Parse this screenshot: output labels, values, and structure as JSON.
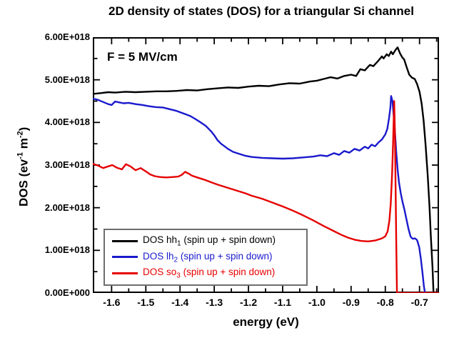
{
  "title": "2D density of states (DOS) for a triangular Si channel",
  "annotation": "F = 5 MV/cm",
  "axes": {
    "x_label": "energy (eV)",
    "y_label_prefix": "DOS (ev",
    "y_sup1": "-1",
    "y_label_mid": " m",
    "y_sup2": "-2",
    "y_label_suffix": ")"
  },
  "legend": {
    "entries": [
      {
        "prefix": "DOS hh",
        "sub": "1",
        "suffix": " (spin up + spin down)",
        "color": "#000000"
      },
      {
        "prefix": "DOS lh",
        "sub": "2",
        "suffix": "  (spin up + spin down)",
        "color": "#1a1acd"
      },
      {
        "prefix": "DOS so",
        "sub": "3",
        "suffix": " (spin up + spin down)",
        "color": "#e60000"
      }
    ]
  },
  "chart_data": {
    "type": "line",
    "title": "2D density of states (DOS) for a triangular Si channel",
    "xlabel": "energy (eV)",
    "ylabel": "DOS (ev-1 m-2)",
    "annotation": "F = 5 MV/cm",
    "y_unit_scale": "values are in units of 1e18 ev-1 m-2",
    "xlim": [
      -1.655,
      -0.643
    ],
    "ylim": [
      0,
      6
    ],
    "grid": false,
    "legend_position": "inside lower-left",
    "x_major_ticks": [
      -1.6,
      -1.5,
      -1.4,
      -1.3,
      -1.2,
      -1.1,
      -1.0,
      -0.9,
      -0.8,
      -0.7
    ],
    "x_minor_ticks": [
      -1.65,
      -1.55,
      -1.45,
      -1.35,
      -1.25,
      -1.15,
      -1.05,
      -0.95,
      -0.85,
      -0.75,
      -0.65
    ],
    "y_major_ticks": [
      0,
      1,
      2,
      3,
      4,
      5,
      6
    ],
    "y_minor_ticks": [
      0.5,
      1.5,
      2.5,
      3.5,
      4.5,
      5.5
    ],
    "x_tick_labels": [
      {
        "v": -1.6,
        "label": "-1.6"
      },
      {
        "v": -1.5,
        "label": "-1.5"
      },
      {
        "v": -1.4,
        "label": "-1.4"
      },
      {
        "v": -1.3,
        "label": "-1.3"
      },
      {
        "v": -1.2,
        "label": "-1.2"
      },
      {
        "v": -1.1,
        "label": "-1.1"
      },
      {
        "v": -1.0,
        "label": "-1.0"
      },
      {
        "v": -0.9,
        "label": "-0.9"
      },
      {
        "v": -0.8,
        "label": "-0.8"
      },
      {
        "v": -0.7,
        "label": "-0.7"
      }
    ],
    "y_tick_labels": [
      {
        "v": 0,
        "label": "0.00E+000"
      },
      {
        "v": 1,
        "label": "1.00E+018"
      },
      {
        "v": 2,
        "label": "2.00E+018"
      },
      {
        "v": 3,
        "label": "3.00E+018"
      },
      {
        "v": 4,
        "label": "4.00E+018"
      },
      {
        "v": 5,
        "label": "5.00E+018"
      },
      {
        "v": 6,
        "label": "6.00E+018"
      }
    ],
    "series": [
      {
        "name": "DOS hh1 (spin up + spin down)",
        "color": "#000000",
        "points": [
          [
            -1.655,
            4.67
          ],
          [
            -1.63,
            4.69
          ],
          [
            -1.61,
            4.71
          ],
          [
            -1.59,
            4.7
          ],
          [
            -1.56,
            4.72
          ],
          [
            -1.53,
            4.71
          ],
          [
            -1.5,
            4.72
          ],
          [
            -1.47,
            4.73
          ],
          [
            -1.44,
            4.73
          ],
          [
            -1.41,
            4.74
          ],
          [
            -1.38,
            4.76
          ],
          [
            -1.35,
            4.75
          ],
          [
            -1.32,
            4.78
          ],
          [
            -1.29,
            4.8
          ],
          [
            -1.26,
            4.82
          ],
          [
            -1.23,
            4.81
          ],
          [
            -1.2,
            4.84
          ],
          [
            -1.17,
            4.86
          ],
          [
            -1.14,
            4.85
          ],
          [
            -1.11,
            4.89
          ],
          [
            -1.08,
            4.92
          ],
          [
            -1.05,
            4.91
          ],
          [
            -1.02,
            4.96
          ],
          [
            -1.0,
            4.98
          ],
          [
            -0.98,
            5.02
          ],
          [
            -0.96,
            5.06
          ],
          [
            -0.94,
            5.03
          ],
          [
            -0.92,
            5.09
          ],
          [
            -0.9,
            5.12
          ],
          [
            -0.885,
            5.09
          ],
          [
            -0.873,
            5.25
          ],
          [
            -0.86,
            5.22
          ],
          [
            -0.845,
            5.35
          ],
          [
            -0.835,
            5.32
          ],
          [
            -0.82,
            5.45
          ],
          [
            -0.81,
            5.55
          ],
          [
            -0.805,
            5.5
          ],
          [
            -0.796,
            5.6
          ],
          [
            -0.79,
            5.56
          ],
          [
            -0.783,
            5.66
          ],
          [
            -0.778,
            5.6
          ],
          [
            -0.77,
            5.7
          ],
          [
            -0.764,
            5.76
          ],
          [
            -0.757,
            5.62
          ],
          [
            -0.75,
            5.52
          ],
          [
            -0.745,
            5.48
          ],
          [
            -0.737,
            5.28
          ],
          [
            -0.73,
            5.12
          ],
          [
            -0.722,
            5.05
          ],
          [
            -0.714,
            5.02
          ],
          [
            -0.707,
            4.9
          ],
          [
            -0.7,
            4.72
          ],
          [
            -0.694,
            4.45
          ],
          [
            -0.688,
            4.05
          ],
          [
            -0.682,
            3.45
          ],
          [
            -0.676,
            2.75
          ],
          [
            -0.671,
            2.05
          ],
          [
            -0.667,
            1.35
          ],
          [
            -0.662,
            0.6
          ],
          [
            -0.659,
            0.0
          ]
        ]
      },
      {
        "name": "DOS lh2 (spin up + spin down)",
        "color": "#1a1acd",
        "points": [
          [
            -1.655,
            4.56
          ],
          [
            -1.64,
            4.53
          ],
          [
            -1.625,
            4.48
          ],
          [
            -1.61,
            4.43
          ],
          [
            -1.6,
            4.41
          ],
          [
            -1.59,
            4.49
          ],
          [
            -1.578,
            4.47
          ],
          [
            -1.565,
            4.45
          ],
          [
            -1.55,
            4.46
          ],
          [
            -1.53,
            4.43
          ],
          [
            -1.51,
            4.41
          ],
          [
            -1.49,
            4.38
          ],
          [
            -1.47,
            4.36
          ],
          [
            -1.45,
            4.35
          ],
          [
            -1.43,
            4.31
          ],
          [
            -1.41,
            4.27
          ],
          [
            -1.39,
            4.21
          ],
          [
            -1.37,
            4.15
          ],
          [
            -1.355,
            4.08
          ],
          [
            -1.34,
            4.0
          ],
          [
            -1.325,
            3.92
          ],
          [
            -1.31,
            3.8
          ],
          [
            -1.3,
            3.7
          ],
          [
            -1.29,
            3.58
          ],
          [
            -1.28,
            3.5
          ],
          [
            -1.27,
            3.44
          ],
          [
            -1.26,
            3.38
          ],
          [
            -1.245,
            3.31
          ],
          [
            -1.23,
            3.27
          ],
          [
            -1.21,
            3.22
          ],
          [
            -1.19,
            3.19
          ],
          [
            -1.16,
            3.17
          ],
          [
            -1.13,
            3.16
          ],
          [
            -1.1,
            3.15
          ],
          [
            -1.07,
            3.16
          ],
          [
            -1.04,
            3.18
          ],
          [
            -1.01,
            3.2
          ],
          [
            -0.99,
            3.23
          ],
          [
            -0.97,
            3.21
          ],
          [
            -0.95,
            3.28
          ],
          [
            -0.935,
            3.24
          ],
          [
            -0.92,
            3.33
          ],
          [
            -0.905,
            3.29
          ],
          [
            -0.89,
            3.38
          ],
          [
            -0.875,
            3.34
          ],
          [
            -0.86,
            3.43
          ],
          [
            -0.85,
            3.39
          ],
          [
            -0.84,
            3.48
          ],
          [
            -0.83,
            3.44
          ],
          [
            -0.82,
            3.53
          ],
          [
            -0.81,
            3.6
          ],
          [
            -0.8,
            3.72
          ],
          [
            -0.794,
            3.85
          ],
          [
            -0.789,
            4.1
          ],
          [
            -0.785,
            4.35
          ],
          [
            -0.783,
            4.62
          ],
          [
            -0.779,
            4.5
          ],
          [
            -0.776,
            4.2
          ],
          [
            -0.772,
            3.8
          ],
          [
            -0.768,
            3.3
          ],
          [
            -0.764,
            2.9
          ],
          [
            -0.76,
            2.6
          ],
          [
            -0.755,
            2.35
          ],
          [
            -0.75,
            2.15
          ],
          [
            -0.744,
            1.95
          ],
          [
            -0.738,
            1.72
          ],
          [
            -0.732,
            1.5
          ],
          [
            -0.726,
            1.32
          ],
          [
            -0.72,
            1.27
          ],
          [
            -0.713,
            1.28
          ],
          [
            -0.707,
            1.24
          ],
          [
            -0.701,
            1.08
          ],
          [
            -0.696,
            0.8
          ],
          [
            -0.691,
            0.45
          ],
          [
            -0.687,
            0.15
          ],
          [
            -0.684,
            0.0
          ]
        ]
      },
      {
        "name": "DOS so3 (spin up + spin down)",
        "color": "#e60000",
        "points": [
          [
            -1.655,
            3.03
          ],
          [
            -1.64,
            2.99
          ],
          [
            -1.625,
            2.93
          ],
          [
            -1.61,
            2.97
          ],
          [
            -1.598,
            3.0
          ],
          [
            -1.585,
            2.94
          ],
          [
            -1.57,
            2.9
          ],
          [
            -1.558,
            3.02
          ],
          [
            -1.545,
            2.97
          ],
          [
            -1.53,
            2.88
          ],
          [
            -1.515,
            2.93
          ],
          [
            -1.5,
            2.85
          ],
          [
            -1.487,
            2.78
          ],
          [
            -1.474,
            2.74
          ],
          [
            -1.46,
            2.72
          ],
          [
            -1.44,
            2.71
          ],
          [
            -1.42,
            2.72
          ],
          [
            -1.405,
            2.73
          ],
          [
            -1.395,
            2.77
          ],
          [
            -1.385,
            2.84
          ],
          [
            -1.375,
            2.8
          ],
          [
            -1.365,
            2.75
          ],
          [
            -1.35,
            2.71
          ],
          [
            -1.33,
            2.66
          ],
          [
            -1.31,
            2.6
          ],
          [
            -1.29,
            2.54
          ],
          [
            -1.27,
            2.49
          ],
          [
            -1.25,
            2.44
          ],
          [
            -1.23,
            2.39
          ],
          [
            -1.21,
            2.34
          ],
          [
            -1.19,
            2.28
          ],
          [
            -1.16,
            2.21
          ],
          [
            -1.13,
            2.12
          ],
          [
            -1.1,
            2.03
          ],
          [
            -1.07,
            1.93
          ],
          [
            -1.04,
            1.82
          ],
          [
            -1.01,
            1.7
          ],
          [
            -0.98,
            1.57
          ],
          [
            -0.95,
            1.45
          ],
          [
            -0.93,
            1.37
          ],
          [
            -0.91,
            1.3
          ],
          [
            -0.89,
            1.25
          ],
          [
            -0.87,
            1.22
          ],
          [
            -0.85,
            1.21
          ],
          [
            -0.83,
            1.23
          ],
          [
            -0.81,
            1.28
          ],
          [
            -0.8,
            1.33
          ],
          [
            -0.793,
            1.45
          ],
          [
            -0.788,
            1.7
          ],
          [
            -0.784,
            2.1
          ],
          [
            -0.78,
            2.8
          ],
          [
            -0.777,
            3.6
          ],
          [
            -0.774,
            4.5
          ],
          [
            -0.772,
            3.8
          ],
          [
            -0.77,
            2.6
          ],
          [
            -0.768,
            1.2
          ],
          [
            -0.766,
            0.0
          ],
          [
            -0.643,
            0.0
          ]
        ]
      }
    ]
  },
  "colors": {
    "frame": "#000000",
    "legend_border": "#6e6e6e",
    "background": "#ffffff"
  }
}
